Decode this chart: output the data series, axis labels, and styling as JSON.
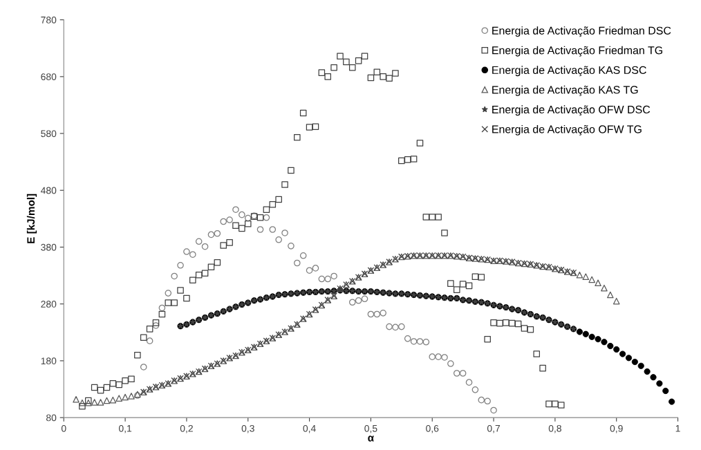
{
  "chart_data": {
    "type": "scatter",
    "xlabel": "α",
    "ylabel": "E [kJ/mol]",
    "xlim": [
      0,
      1
    ],
    "ylim": [
      80,
      780
    ],
    "xticks": [
      0,
      {
        "value": 0.1,
        "label": "0,1"
      },
      {
        "value": 0.2,
        "label": "0,2"
      },
      {
        "value": 0.3,
        "label": "0,3"
      },
      {
        "value": 0.4,
        "label": "0,4"
      },
      {
        "value": 0.5,
        "label": "0,5"
      },
      {
        "value": 0.6,
        "label": "0,6"
      },
      {
        "value": 0.7,
        "label": "0,7"
      },
      {
        "value": 0.8,
        "label": "0,8"
      },
      {
        "value": 0.9,
        "label": "0,9"
      },
      1
    ],
    "yticks": [
      80,
      180,
      280,
      380,
      480,
      580,
      680,
      780
    ],
    "grid": false,
    "legend": "top right",
    "series": [
      {
        "name": "Energia de Activação Friedman DSC",
        "color": "#7f7f7f",
        "marker": "circle",
        "x": [
          0.12,
          0.13,
          0.14,
          0.15,
          0.16,
          0.17,
          0.18,
          0.19,
          0.2,
          0.21,
          0.22,
          0.23,
          0.24,
          0.25,
          0.26,
          0.27,
          0.28,
          0.29,
          0.3,
          0.31,
          0.32,
          0.33,
          0.34,
          0.35,
          0.36,
          0.37,
          0.38,
          0.39,
          0.4,
          0.41,
          0.42,
          0.43,
          0.44,
          0.45,
          0.46,
          0.47,
          0.48,
          0.49,
          0.5,
          0.51,
          0.52,
          0.53,
          0.54,
          0.55,
          0.56,
          0.57,
          0.58,
          0.59,
          0.6,
          0.61,
          0.62,
          0.63,
          0.64,
          0.65,
          0.66,
          0.67,
          0.68,
          0.69,
          0.7
        ],
        "values": [
          119,
          169,
          215,
          242,
          273,
          299,
          329,
          348,
          372,
          367,
          390,
          381,
          402,
          404,
          425,
          428,
          446,
          437,
          431,
          435,
          411,
          432,
          411,
          393,
          405,
          382,
          352,
          365,
          339,
          343,
          324,
          324,
          329,
          null,
          null,
          283,
          286,
          289,
          262,
          262,
          264,
          240,
          239,
          240,
          219,
          214,
          214,
          213,
          187,
          187,
          186,
          175,
          158,
          158,
          142,
          129,
          111,
          109,
          93
        ]
      },
      {
        "name": "Energia de Activação Friedman TG",
        "color": "#404040",
        "marker": "square",
        "x": [
          0.03,
          0.04,
          0.05,
          0.06,
          0.07,
          0.08,
          0.09,
          0.1,
          0.11,
          0.12,
          0.13,
          0.14,
          0.15,
          0.16,
          0.17,
          0.18,
          0.19,
          0.2,
          0.21,
          0.22,
          0.23,
          0.24,
          0.25,
          0.26,
          0.27,
          0.28,
          0.29,
          0.3,
          0.31,
          0.32,
          0.33,
          0.34,
          0.35,
          0.36,
          0.37,
          0.38,
          0.39,
          0.4,
          0.41,
          0.42,
          0.43,
          0.44,
          0.45,
          0.46,
          0.47,
          0.48,
          0.49,
          0.5,
          0.51,
          0.52,
          0.53,
          0.54,
          0.55,
          0.56,
          0.57,
          0.58,
          0.59,
          0.6,
          0.61,
          0.62,
          0.63,
          0.64,
          0.65,
          0.66,
          0.67,
          0.68,
          0.69,
          0.7,
          0.71,
          0.72,
          0.73,
          0.74,
          0.75,
          0.76,
          0.77,
          0.78,
          0.79,
          0.8,
          0.81
        ],
        "values": [
          100,
          110,
          133,
          128,
          133,
          140,
          138,
          145,
          148,
          190,
          221,
          236,
          247,
          262,
          282,
          282,
          304,
          290,
          322,
          331,
          334,
          345,
          353,
          383,
          388,
          418,
          413,
          421,
          434,
          432,
          446,
          455,
          464,
          490,
          515,
          573,
          616,
          591,
          592,
          687,
          680,
          696,
          716,
          706,
          696,
          708,
          716,
          678,
          688,
          680,
          677,
          686,
          532,
          534,
          535,
          563,
          433,
          433,
          433,
          405,
          316,
          305,
          315,
          312,
          328,
          327,
          218,
          247,
          246,
          247,
          246,
          245,
          237,
          235,
          192,
          167,
          104,
          104,
          102
        ]
      },
      {
        "name": "Energia de Activação KAS DSC",
        "color": "#000000",
        "marker": "circle",
        "x": [
          0.19,
          0.2,
          0.21,
          0.22,
          0.23,
          0.24,
          0.25,
          0.26,
          0.27,
          0.28,
          0.29,
          0.3,
          0.31,
          0.32,
          0.33,
          0.34,
          0.35,
          0.36,
          0.37,
          0.38,
          0.39,
          0.4,
          0.41,
          0.42,
          0.43,
          0.44,
          0.45,
          0.46,
          0.47,
          0.48,
          0.49,
          0.5,
          0.51,
          0.52,
          0.53,
          0.54,
          0.55,
          0.56,
          0.57,
          0.58,
          0.59,
          0.6,
          0.61,
          0.62,
          0.63,
          0.64,
          0.65,
          0.66,
          0.67,
          0.68,
          0.69,
          0.7,
          0.71,
          0.72,
          0.73,
          0.74,
          0.75,
          0.76,
          0.77,
          0.78,
          0.79,
          0.8,
          0.81,
          0.82,
          0.83,
          0.84,
          0.85,
          0.86,
          0.87,
          0.88,
          0.89,
          0.9,
          0.91,
          0.92,
          0.93,
          0.94,
          0.95,
          0.96,
          0.97,
          0.98,
          0.99
        ],
        "values": [
          241,
          244,
          248,
          252,
          256,
          260,
          263,
          267,
          271,
          275,
          279,
          282,
          286,
          288,
          291,
          293,
          296,
          297,
          298,
          299,
          300,
          301,
          301,
          302,
          302,
          303,
          304,
          303,
          303,
          302,
          302,
          302,
          301,
          300,
          299,
          298,
          298,
          297,
          296,
          295,
          294,
          293,
          292,
          291,
          290,
          290,
          287,
          286,
          284,
          283,
          281,
          278,
          276,
          274,
          271,
          269,
          265,
          262,
          258,
          256,
          252,
          248,
          244,
          240,
          236,
          231,
          227,
          222,
          218,
          213,
          206,
          200,
          192,
          185,
          178,
          171,
          161,
          151,
          140,
          127,
          108
        ]
      },
      {
        "name": "Energia de Activação KAS TG",
        "color": "#595959",
        "marker": "triangle",
        "x": [
          0.02,
          0.03,
          0.04,
          0.05,
          0.06,
          0.07,
          0.08,
          0.09,
          0.1,
          0.11,
          0.12,
          0.13,
          0.14,
          0.15,
          0.16,
          0.17,
          0.18,
          0.19,
          0.2,
          0.21,
          0.22,
          0.23,
          0.24,
          0.25,
          0.26,
          0.27,
          0.28,
          0.29,
          0.3,
          0.31,
          0.32,
          0.33,
          0.34,
          0.35,
          0.36,
          0.37,
          0.38,
          0.39,
          0.4,
          0.41,
          0.42,
          0.43,
          0.44,
          0.45,
          0.46,
          0.47,
          0.48,
          0.49,
          0.5,
          0.51,
          0.52,
          0.53,
          0.54,
          0.55,
          0.56,
          0.57,
          0.58,
          0.59,
          0.6,
          0.61,
          0.62,
          0.63,
          0.64,
          0.65,
          0.66,
          0.67,
          0.68,
          0.69,
          0.7,
          0.71,
          0.72,
          0.73,
          0.74,
          0.75,
          0.76,
          0.77,
          0.78,
          0.79,
          0.8,
          0.81,
          0.82,
          0.83,
          0.84,
          0.85,
          0.86,
          0.87,
          0.88,
          0.89,
          0.9
        ],
        "values": [
          112,
          106,
          106,
          107,
          107,
          110,
          111,
          114,
          116,
          118,
          121,
          125,
          130,
          134,
          137,
          140,
          145,
          149,
          153,
          157,
          161,
          166,
          171,
          175,
          180,
          185,
          189,
          195,
          199,
          204,
          210,
          215,
          220,
          226,
          231,
          237,
          244,
          254,
          262,
          270,
          278,
          287,
          294,
          307,
          314,
          320,
          327,
          333,
          339,
          344,
          349,
          354,
          359,
          363,
          364,
          365,
          365,
          365,
          365,
          365,
          365,
          365,
          364,
          363,
          361,
          360,
          359,
          358,
          356,
          356,
          355,
          354,
          352,
          351,
          350,
          348,
          346,
          345,
          342,
          340,
          337,
          335,
          331,
          328,
          323,
          317,
          308,
          296,
          285
        ]
      },
      {
        "name": "Energia de Activação OFW DSC",
        "color": "#404040",
        "marker": "star",
        "x": [
          0.19,
          0.2,
          0.21,
          0.22,
          0.23,
          0.24,
          0.25,
          0.26,
          0.27,
          0.28,
          0.29,
          0.3,
          0.31,
          0.32,
          0.33,
          0.34,
          0.35,
          0.36,
          0.37,
          0.38,
          0.39,
          0.4,
          0.41,
          0.42,
          0.43,
          0.44,
          0.45,
          0.46,
          0.47,
          0.48,
          0.49,
          0.5,
          0.51,
          0.52,
          0.53,
          0.54,
          0.55,
          0.56,
          0.57,
          0.58,
          0.59,
          0.6,
          0.61,
          0.62,
          0.63,
          0.64,
          0.65,
          0.66,
          0.67,
          0.68,
          0.69,
          0.7,
          0.71,
          0.72,
          0.73,
          0.74,
          0.75,
          0.76,
          0.77,
          0.78,
          0.79,
          0.8,
          0.81,
          0.82,
          0.83
        ],
        "values": [
          241,
          244,
          248,
          252,
          256,
          260,
          263,
          267,
          271,
          275,
          279,
          282,
          286,
          288,
          291,
          293,
          296,
          297,
          298,
          299,
          300,
          301,
          301,
          302,
          302,
          303,
          304,
          303,
          303,
          302,
          302,
          302,
          301,
          300,
          299,
          298,
          298,
          297,
          296,
          295,
          294,
          293,
          292,
          291,
          290,
          290,
          287,
          286,
          284,
          283,
          281,
          278,
          276,
          274,
          271,
          269,
          265,
          262,
          258,
          256,
          252,
          248,
          244,
          240,
          236
        ]
      },
      {
        "name": "Energia de Activação OFW TG",
        "color": "#404040",
        "marker": "cross",
        "x": [
          0.13,
          0.14,
          0.15,
          0.16,
          0.17,
          0.18,
          0.19,
          0.2,
          0.21,
          0.22,
          0.23,
          0.24,
          0.25,
          0.26,
          0.27,
          0.28,
          0.29,
          0.3,
          0.31,
          0.32,
          0.33,
          0.34,
          0.35,
          0.36,
          0.37,
          0.38,
          0.39,
          0.4,
          0.41,
          0.42,
          0.43,
          0.44,
          0.45,
          0.46,
          0.47,
          0.48,
          0.49,
          0.5,
          0.51,
          0.52,
          0.53,
          0.54,
          0.55,
          0.56,
          0.57,
          0.58,
          0.59,
          0.6,
          0.61,
          0.62,
          0.63,
          0.64,
          0.65,
          0.66,
          0.67,
          0.68,
          0.69,
          0.7,
          0.71,
          0.72,
          0.73,
          0.74,
          0.75,
          0.76,
          0.77,
          0.78,
          0.79,
          0.8,
          0.81,
          0.82,
          0.83
        ],
        "values": [
          125,
          130,
          134,
          137,
          140,
          145,
          149,
          153,
          157,
          161,
          166,
          171,
          175,
          180,
          185,
          189,
          195,
          199,
          204,
          210,
          215,
          220,
          226,
          231,
          237,
          244,
          254,
          262,
          270,
          278,
          287,
          294,
          307,
          314,
          320,
          327,
          333,
          339,
          344,
          349,
          354,
          359,
          363,
          364,
          365,
          365,
          365,
          365,
          365,
          365,
          365,
          364,
          363,
          361,
          360,
          359,
          358,
          356,
          356,
          355,
          354,
          352,
          351,
          350,
          348,
          346,
          345,
          342,
          340,
          337,
          335
        ]
      }
    ]
  }
}
